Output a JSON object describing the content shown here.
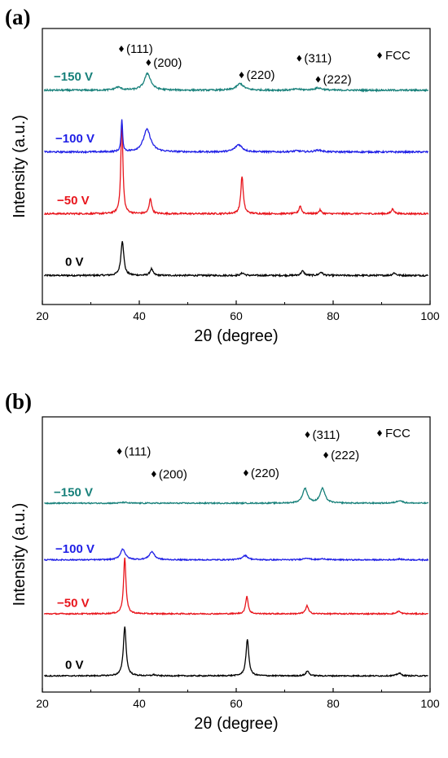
{
  "colors": {
    "0 V": "#000000",
    "-50 V": "#e8141b",
    "-100 V": "#1f1fe6",
    "-150 V": "#17807a"
  },
  "chart_data": [
    {
      "type": "line",
      "panel_label": "(a)",
      "xlabel": "2θ (degree)",
      "ylabel": "Intensity (a.u.)",
      "xlim": [
        20,
        100
      ],
      "xticks": [
        "20",
        "40",
        "60",
        "80",
        "100"
      ],
      "legend_text": "FCC",
      "series": [
        {
          "name": "0 V",
          "color": "#000000",
          "baseline": 0,
          "peaks": [
            [
              36.5,
              4.8,
              0.35
            ],
            [
              42.5,
              0.9,
              0.35
            ],
            [
              61.3,
              0.35,
              0.4
            ],
            [
              73.7,
              0.6,
              0.4
            ],
            [
              77.5,
              0.45,
              0.4
            ],
            [
              92.6,
              0.35,
              0.4
            ]
          ]
        },
        {
          "name": "−50 V",
          "color": "#e8141b",
          "baseline": 8.5,
          "peaks": [
            [
              36.4,
              12.8,
              0.25
            ],
            [
              42.3,
              2.1,
              0.3
            ],
            [
              61.2,
              5.2,
              0.3
            ],
            [
              73.2,
              1.1,
              0.3
            ],
            [
              77.3,
              0.5,
              0.3
            ],
            [
              92.3,
              0.7,
              0.3
            ]
          ]
        },
        {
          "name": "−100 V",
          "color": "#1f1fe6",
          "baseline": 17,
          "peaks": [
            [
              36.4,
              4.5,
              0.18
            ],
            [
              41.6,
              3.1,
              0.9
            ],
            [
              60.5,
              1.0,
              0.9
            ],
            [
              72.5,
              0.15,
              0.9
            ],
            [
              77.0,
              0.25,
              0.9
            ]
          ]
        },
        {
          "name": "−150 V",
          "color": "#17807a",
          "baseline": 25.5,
          "peaks": [
            [
              35.6,
              0.4,
              0.8
            ],
            [
              41.7,
              2.3,
              0.8
            ],
            [
              60.8,
              0.9,
              0.9
            ],
            [
              72.6,
              0.15,
              0.9
            ],
            [
              76.9,
              0.3,
              1.0
            ]
          ]
        }
      ],
      "peak_labels": [
        {
          "text": "(111)",
          "x": 36.3,
          "y": 31.2
        },
        {
          "text": "(200)",
          "x": 41.9,
          "y": 29.3
        },
        {
          "text": "(220)",
          "x": 61.1,
          "y": 27.6
        },
        {
          "text": "(311)",
          "x": 73.0,
          "y": 29.9
        },
        {
          "text": "(222)",
          "x": 76.9,
          "y": 27.0
        }
      ]
    },
    {
      "type": "line",
      "panel_label": "(b)",
      "xlabel": "2θ (degree)",
      "ylabel": "Intensity (a.u.)",
      "xlim": [
        20,
        100
      ],
      "xticks": [
        "20",
        "40",
        "60",
        "80",
        "100"
      ],
      "legend_text": "FCC",
      "series": [
        {
          "name": "0 V",
          "color": "#000000",
          "baseline": 0,
          "peaks": [
            [
              37.0,
              9.2,
              0.35
            ],
            [
              43.0,
              0.2,
              0.4
            ],
            [
              62.3,
              6.7,
              0.35
            ],
            [
              74.7,
              0.9,
              0.4
            ],
            [
              93.6,
              0.5,
              0.5
            ]
          ]
        },
        {
          "name": "−50 V",
          "color": "#e8141b",
          "baseline": 11.5,
          "peaks": [
            [
              37.0,
              10.5,
              0.3
            ],
            [
              62.2,
              3.3,
              0.3
            ],
            [
              74.6,
              1.5,
              0.35
            ],
            [
              93.5,
              0.5,
              0.4
            ]
          ]
        },
        {
          "name": "−100 V",
          "color": "#1f1fe6",
          "baseline": 21.5,
          "peaks": [
            [
              36.6,
              2.0,
              0.6
            ],
            [
              42.6,
              1.5,
              0.65
            ],
            [
              61.8,
              0.8,
              0.7
            ],
            [
              74.5,
              0.35,
              0.7
            ],
            [
              78.0,
              0.2,
              0.7
            ],
            [
              93.6,
              0.15,
              0.7
            ]
          ]
        },
        {
          "name": "−150 V",
          "color": "#17807a",
          "baseline": 32.0,
          "peaks": [
            [
              36.8,
              0.15,
              0.7
            ],
            [
              74.2,
              2.7,
              0.6
            ],
            [
              77.8,
              2.7,
              0.6
            ],
            [
              93.7,
              0.5,
              0.7
            ]
          ]
        }
      ],
      "peak_labels": [
        {
          "text": "(111)",
          "x": 35.9,
          "y": 41.6
        },
        {
          "text": "(200)",
          "x": 43.0,
          "y": 37.4
        },
        {
          "text": "(220)",
          "x": 62.0,
          "y": 37.6
        },
        {
          "text": "(311)",
          "x": 74.7,
          "y": 44.7
        },
        {
          "text": "(222)",
          "x": 78.5,
          "y": 40.9
        }
      ]
    }
  ]
}
